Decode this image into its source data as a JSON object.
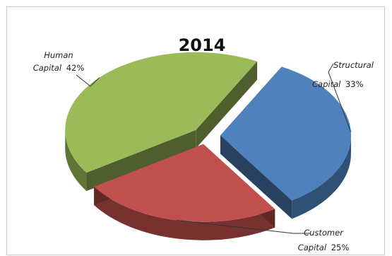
{
  "chart_data": {
    "type": "pie",
    "title": "2014",
    "three_d": true,
    "exploded": true,
    "legend": "none",
    "slices": [
      {
        "name": "Structural Capital",
        "value": 33,
        "label_line1": "Structural",
        "label_line2_italic": "Capital",
        "label_line2_value": "33%",
        "color": "#4f81bd"
      },
      {
        "name": "Customer Capital",
        "value": 25,
        "label_line1": "Customer",
        "label_line2_italic": "Capital",
        "label_line2_value": "25%",
        "color": "#c0504d"
      },
      {
        "name": "Human Capital",
        "value": 42,
        "label_line1": "Human",
        "label_line2_italic": "Capital",
        "label_line2_value": "42%",
        "color": "#9bbb59"
      }
    ]
  }
}
